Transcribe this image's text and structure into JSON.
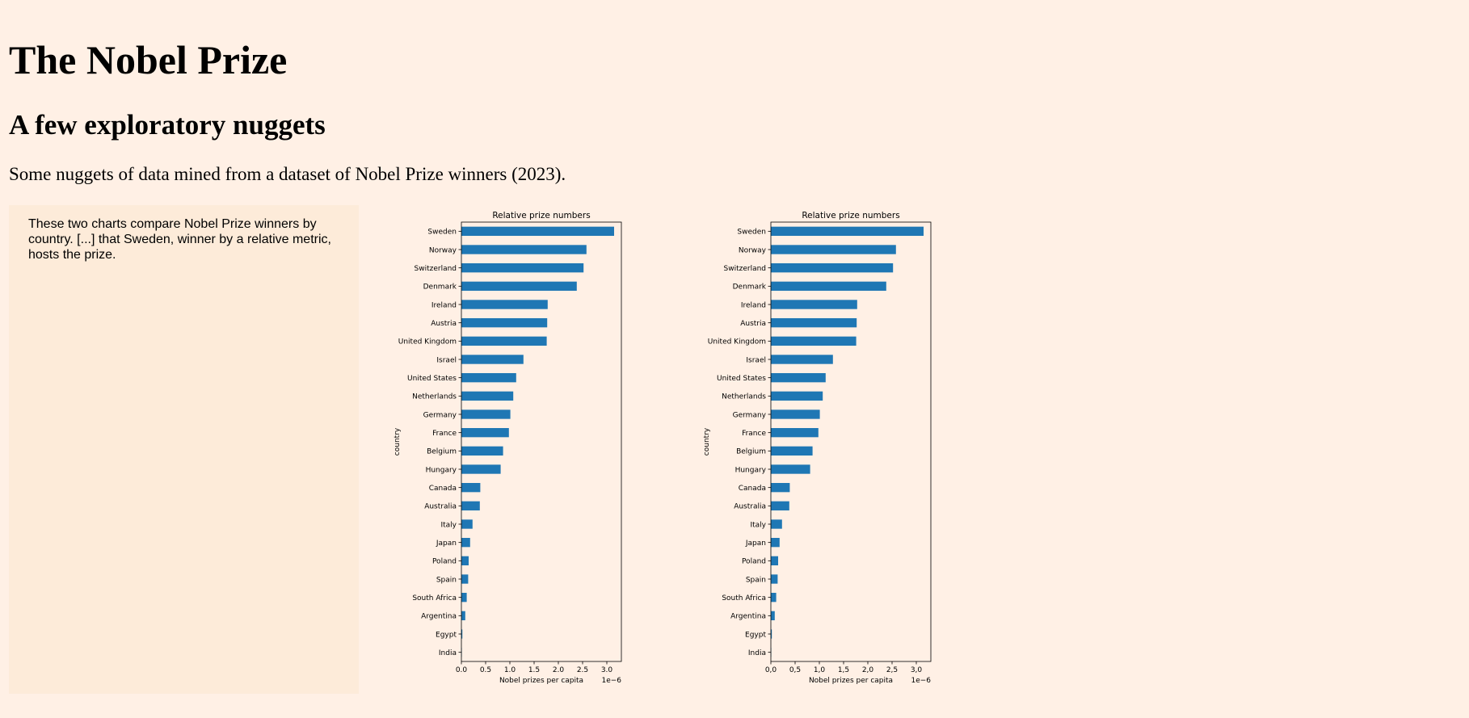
{
  "page": {
    "title": "The Nobel Prize",
    "subtitle": "A few exploratory nuggets",
    "intro": "Some nuggets of data mined from a dataset of Nobel Prize winners (2023).",
    "sidebar_text": "These two charts compare Nobel Prize winners by country. [...] that Sweden, winner by a relative metric, hosts the prize."
  },
  "colors": {
    "background": "#fff0e5",
    "sidebar": "#fdebd9",
    "bar": "#1f77b4"
  },
  "chart_data": [
    {
      "type": "bar",
      "orientation": "horizontal",
      "title": "Relative prize numbers",
      "xlabel": "Nobel prizes per capita",
      "ylabel": "country",
      "x_scale_label": "1e−6",
      "xlim": [
        0,
        3.3
      ],
      "xticks": [
        "0.0",
        "0.5",
        "1.0",
        "1.5",
        "2.0",
        "2.5",
        "3.0"
      ],
      "categories": [
        "Sweden",
        "Norway",
        "Switzerland",
        "Denmark",
        "Ireland",
        "Austria",
        "United Kingdom",
        "Israel",
        "United States",
        "Netherlands",
        "Germany",
        "France",
        "Belgium",
        "Hungary",
        "Canada",
        "Australia",
        "Italy",
        "Japan",
        "Poland",
        "Spain",
        "South Africa",
        "Argentina",
        "Egypt",
        "India"
      ],
      "values": [
        3.15,
        2.58,
        2.52,
        2.38,
        1.78,
        1.77,
        1.76,
        1.28,
        1.13,
        1.07,
        1.01,
        0.98,
        0.86,
        0.81,
        0.39,
        0.38,
        0.23,
        0.18,
        0.15,
        0.14,
        0.11,
        0.08,
        0.02,
        0.005
      ]
    },
    {
      "type": "bar",
      "orientation": "horizontal",
      "title": "Relative prize numbers",
      "xlabel": "Nobel prizes per capita",
      "ylabel": "country",
      "x_scale_label": "1e−6",
      "xlim": [
        0,
        3.3
      ],
      "xticks": [
        "0,0",
        "0,5",
        "1,0",
        "1,5",
        "2,0",
        "2,5",
        "3,0"
      ],
      "categories": [
        "Sweden",
        "Norway",
        "Switzerland",
        "Denmark",
        "Ireland",
        "Austria",
        "United Kingdom",
        "Israel",
        "United States",
        "Netherlands",
        "Germany",
        "France",
        "Belgium",
        "Hungary",
        "Canada",
        "Australia",
        "Italy",
        "Japan",
        "Poland",
        "Spain",
        "South Africa",
        "Argentina",
        "Egypt",
        "India"
      ],
      "values": [
        3.15,
        2.58,
        2.52,
        2.38,
        1.78,
        1.77,
        1.76,
        1.28,
        1.13,
        1.07,
        1.01,
        0.98,
        0.86,
        0.81,
        0.39,
        0.38,
        0.23,
        0.18,
        0.15,
        0.14,
        0.11,
        0.08,
        0.02,
        0.005
      ]
    }
  ]
}
